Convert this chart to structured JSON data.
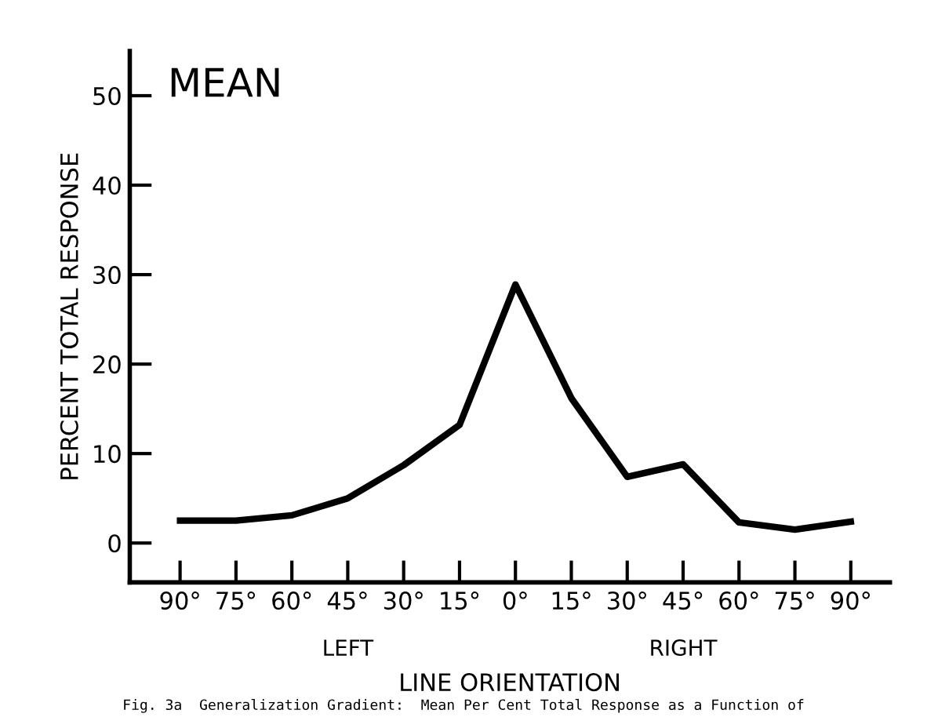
{
  "chart_data": {
    "type": "line",
    "title": "MEAN",
    "xlabel": "LINE ORIENTATION",
    "ylabel": "PERCENT TOTAL RESPONSE",
    "categories": [
      "90°",
      "75°",
      "60°",
      "45°",
      "30°",
      "15°",
      "0°",
      "15°",
      "30°",
      "45°",
      "60°",
      "75°",
      "90°"
    ],
    "series": [
      {
        "color": "#000000",
        "values": [
          2.5,
          2.5,
          3.1,
          5.0,
          8.7,
          13.2,
          28.9,
          16.2,
          7.4,
          8.8,
          2.3,
          1.5,
          2.4
        ]
      }
    ],
    "ylim": [
      -4.4,
      55
    ],
    "yticks": [
      0,
      10,
      20,
      30,
      40,
      50
    ],
    "grid": false,
    "legend": false,
    "marker": "none",
    "line_style": "solid",
    "annotations": [
      "LEFT",
      "RIGHT",
      "Fig. 3a  Generalization Gradient:  Mean Per Cent Total Response as a Function of"
    ]
  }
}
